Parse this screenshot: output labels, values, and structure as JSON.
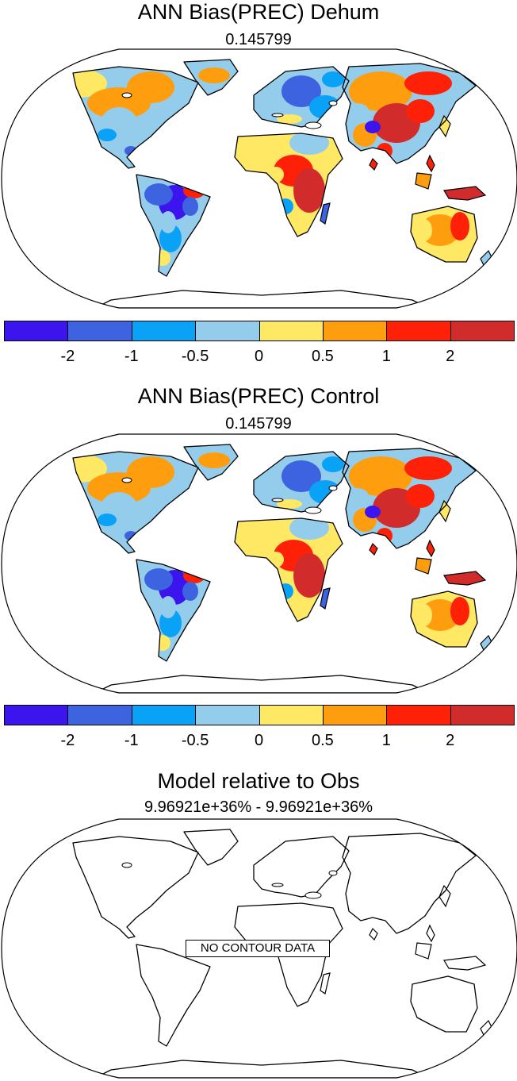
{
  "panels": [
    {
      "title": "ANN Bias(PREC) Dehum",
      "subtitle": "0.145799"
    },
    {
      "title": "ANN Bias(PREC) Control",
      "subtitle": "0.145799"
    },
    {
      "title": "Model relative to Obs",
      "subtitle": "9.96921e+36% - 9.96921e+36%",
      "message": "NO CONTOUR DATA"
    }
  ],
  "colorbar": {
    "colors": [
      "#3b14ee",
      "#3d63e0",
      "#09a2f6",
      "#94cdec",
      "#fee864",
      "#fe9e0f",
      "#fe2108",
      "#d22b2b"
    ],
    "labels": [
      "-2",
      "-1",
      "-0.5",
      "0",
      "0.5",
      "1",
      "2"
    ]
  }
}
